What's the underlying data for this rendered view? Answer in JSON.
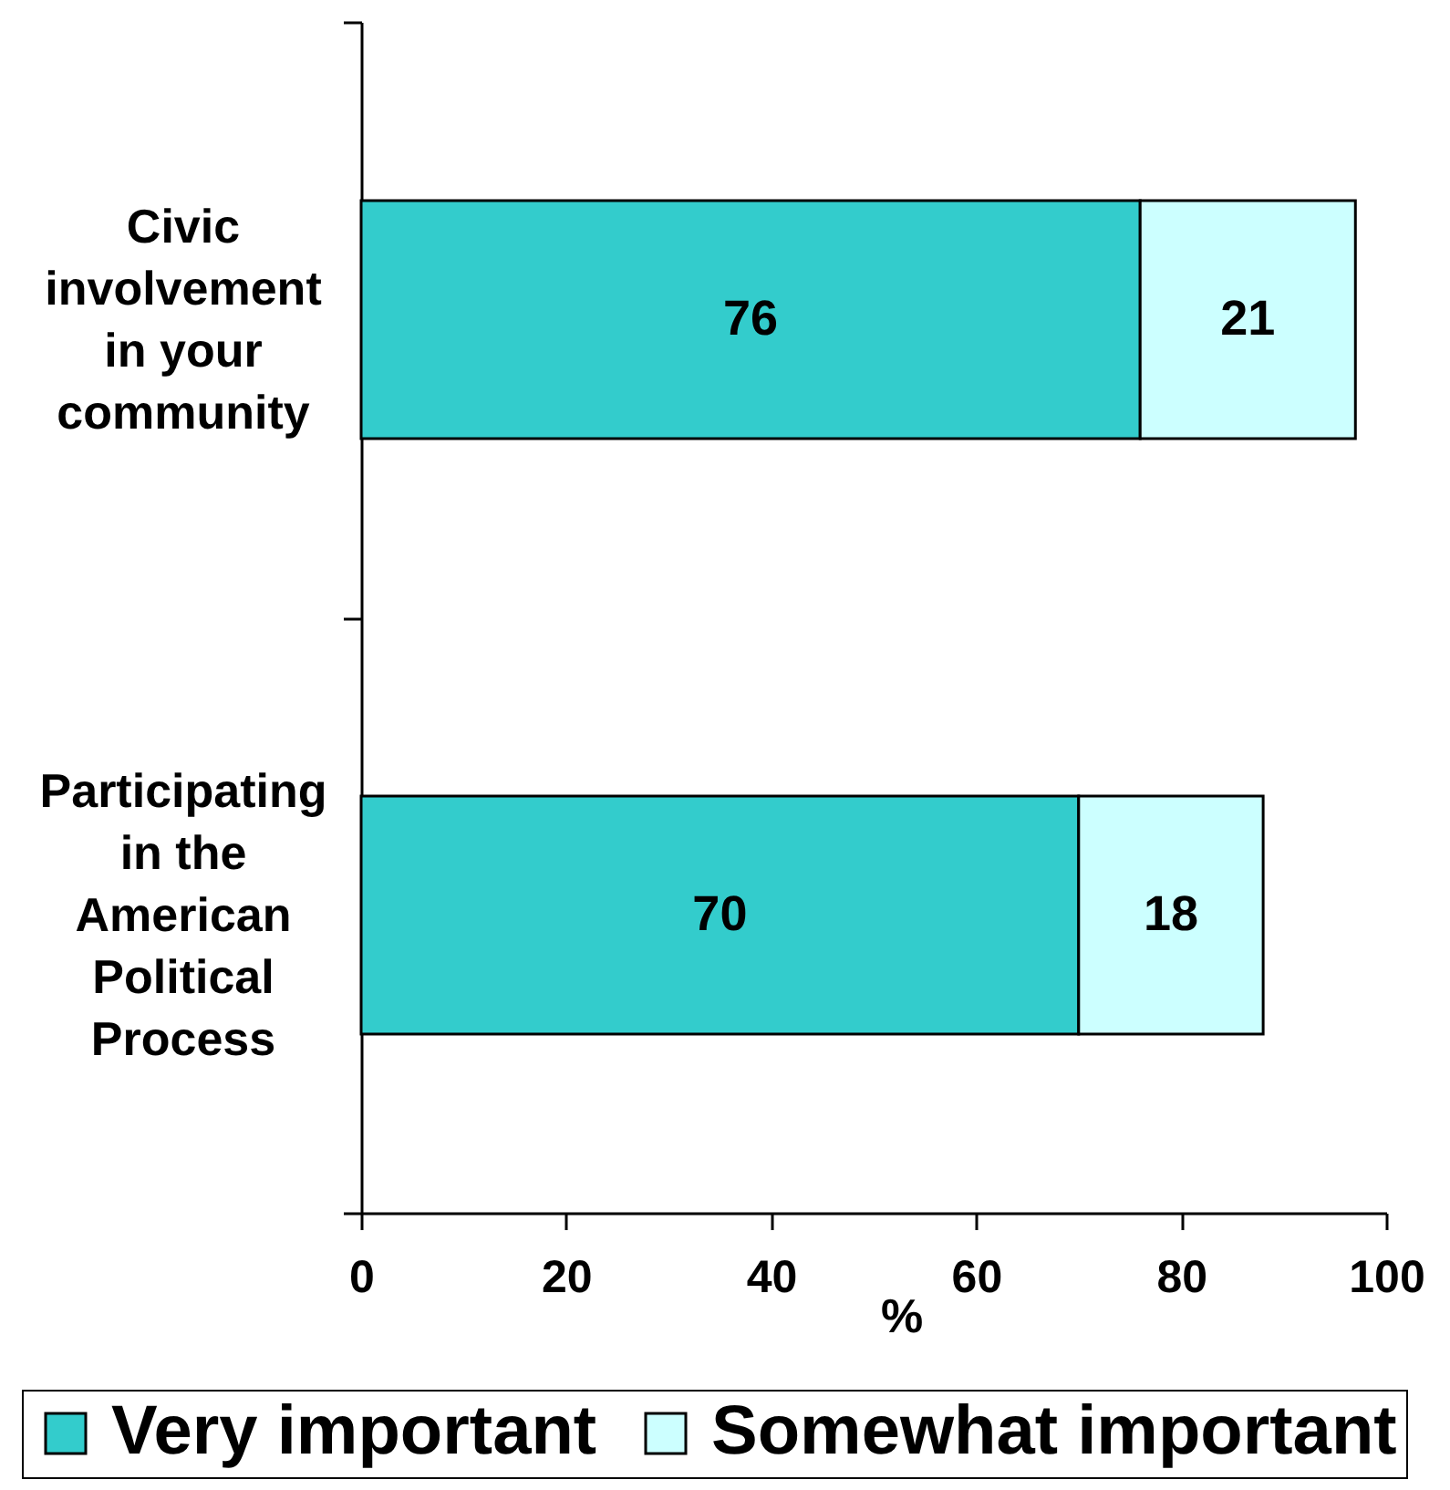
{
  "chart_data": {
    "type": "bar",
    "orientation": "horizontal",
    "stacked": true,
    "categories": [
      "Civic involvement in your community",
      "Participating in the American Political Process"
    ],
    "series": [
      {
        "name": "Very important",
        "color": "#33cccc",
        "values": [
          76,
          70
        ]
      },
      {
        "name": "Somewhat important",
        "color": "#ccffff",
        "values": [
          21,
          18
        ]
      }
    ],
    "xlabel": "%",
    "xlim": [
      0,
      100
    ],
    "xticks": [
      0,
      20,
      40,
      60,
      80,
      100
    ],
    "data_labels": true,
    "legend": "bottom"
  }
}
